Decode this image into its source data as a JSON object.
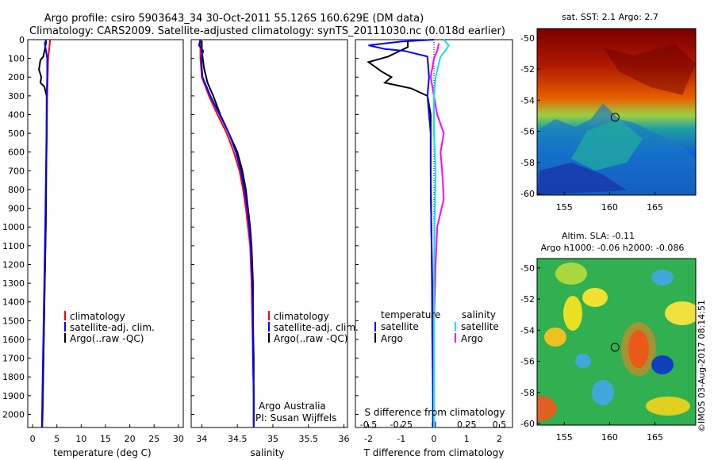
{
  "title": {
    "line1": "Argo profile: csiro 5903643_34 30-Oct-2011 55.126S 160.629E (DM data)",
    "line2": "Climatology: CARS2009. Satellite-adjusted climatology: synTS_20111030.nc (0.018d earlier)"
  },
  "colors": {
    "climatology": "#ff0000",
    "satellite": "#0000ff",
    "argo": "#000000",
    "sat_salinity": "#00e5ee",
    "argo_salinity": "#ff00ff"
  },
  "side_label": "©IMOS 03-Aug-2017 08:14:51",
  "chart_data": [
    {
      "type": "line",
      "id": "temperature",
      "xlabel": "temperature (deg C)",
      "ylabel": "",
      "xlim": [
        -1,
        31
      ],
      "ylim": [
        2070,
        0
      ],
      "xticks": [
        "0",
        "5",
        "10",
        "15",
        "20",
        "25",
        "30"
      ],
      "xtick_values": [
        0,
        5,
        10,
        15,
        20,
        25,
        30
      ],
      "yticks": [
        0,
        100,
        200,
        300,
        400,
        500,
        600,
        700,
        800,
        900,
        1000,
        1100,
        1200,
        1300,
        1400,
        1500,
        1600,
        1700,
        1800,
        1900,
        2000
      ],
      "legend": [
        "climatology",
        "satellite-adj. clim.",
        "Argo(..raw -QC)"
      ],
      "series": [
        {
          "name": "climatology",
          "points": [
            [
              3.6,
              0
            ],
            [
              3.4,
              50
            ],
            [
              3.2,
              100
            ],
            [
              3.1,
              200
            ],
            [
              3.0,
              300
            ],
            [
              2.9,
              500
            ],
            [
              2.8,
              700
            ],
            [
              2.7,
              1000
            ],
            [
              2.5,
              1300
            ],
            [
              2.3,
              1600
            ],
            [
              2.1,
              1900
            ],
            [
              2.0,
              2070
            ]
          ]
        },
        {
          "name": "satellite-adj. clim.",
          "points": [
            [
              2.8,
              0
            ],
            [
              2.5,
              20
            ],
            [
              2.7,
              50
            ],
            [
              3.0,
              100
            ],
            [
              3.0,
              200
            ],
            [
              2.9,
              300
            ],
            [
              2.85,
              500
            ],
            [
              2.75,
              700
            ],
            [
              2.6,
              1000
            ],
            [
              2.4,
              1300
            ],
            [
              2.2,
              1600
            ],
            [
              2.0,
              1900
            ],
            [
              1.9,
              2070
            ]
          ]
        },
        {
          "name": "Argo(..raw -QC)",
          "points": [
            [
              2.8,
              8
            ],
            [
              2.6,
              40
            ],
            [
              2.2,
              90
            ],
            [
              1.6,
              110
            ],
            [
              1.3,
              160
            ],
            [
              1.8,
              200
            ],
            [
              1.6,
              230
            ],
            [
              2.4,
              250
            ],
            [
              2.9,
              300
            ],
            [
              2.9,
              500
            ],
            [
              2.8,
              700
            ],
            [
              2.7,
              1000
            ],
            [
              2.5,
              1300
            ],
            [
              2.3,
              1600
            ],
            [
              2.1,
              1900
            ],
            [
              2.0,
              2040
            ]
          ]
        }
      ]
    },
    {
      "type": "line",
      "id": "salinity",
      "xlabel": "salinity",
      "ylabel": "",
      "xlim": [
        33.85,
        36.05
      ],
      "ylim": [
        2070,
        0
      ],
      "xticks": [
        "34",
        "34.5",
        "35",
        "35.5",
        "36"
      ],
      "xtick_values": [
        34,
        34.5,
        35,
        35.5,
        36
      ],
      "legend": [
        "climatology",
        "satellite-adj. clim.",
        "Argo(..raw -QC)"
      ],
      "annotation": [
        "Argo Australia",
        "PI: Susan Wijffels"
      ],
      "series": [
        {
          "name": "climatology",
          "points": [
            [
              33.98,
              0
            ],
            [
              33.98,
              100
            ],
            [
              34.0,
              200
            ],
            [
              34.1,
              300
            ],
            [
              34.22,
              400
            ],
            [
              34.35,
              500
            ],
            [
              34.45,
              600
            ],
            [
              34.53,
              700
            ],
            [
              34.58,
              800
            ],
            [
              34.62,
              900
            ],
            [
              34.65,
              1000
            ],
            [
              34.68,
              1100
            ],
            [
              34.69,
              1200
            ],
            [
              34.7,
              1300
            ],
            [
              34.71,
              1500
            ],
            [
              34.72,
              1700
            ],
            [
              34.73,
              1900
            ],
            [
              34.73,
              2070
            ]
          ]
        },
        {
          "name": "satellite-adj. clim.",
          "points": [
            [
              33.98,
              0
            ],
            [
              33.96,
              30
            ],
            [
              34.02,
              60
            ],
            [
              33.99,
              100
            ],
            [
              34.01,
              200
            ],
            [
              34.12,
              300
            ],
            [
              34.25,
              400
            ],
            [
              34.38,
              500
            ],
            [
              34.48,
              600
            ],
            [
              34.55,
              700
            ],
            [
              34.6,
              800
            ],
            [
              34.64,
              900
            ],
            [
              34.67,
              1000
            ],
            [
              34.69,
              1100
            ],
            [
              34.7,
              1200
            ],
            [
              34.71,
              1300
            ],
            [
              34.72,
              1500
            ],
            [
              34.72,
              1700
            ],
            [
              34.73,
              1900
            ],
            [
              34.73,
              2070
            ]
          ]
        },
        {
          "name": "Argo(..raw -QC)",
          "points": [
            [
              34.0,
              5
            ],
            [
              34.0,
              60
            ],
            [
              34.03,
              150
            ],
            [
              34.08,
              230
            ],
            [
              34.16,
              300
            ],
            [
              34.26,
              400
            ],
            [
              34.38,
              500
            ],
            [
              34.5,
              600
            ],
            [
              34.57,
              700
            ],
            [
              34.62,
              800
            ],
            [
              34.65,
              900
            ],
            [
              34.68,
              1000
            ],
            [
              34.7,
              1100
            ],
            [
              34.71,
              1200
            ],
            [
              34.72,
              1300
            ],
            [
              34.72,
              1500
            ],
            [
              34.73,
              1700
            ],
            [
              34.73,
              1900
            ],
            [
              34.73,
              2040
            ]
          ]
        }
      ]
    },
    {
      "type": "line",
      "id": "difference",
      "xlabel": "T difference from climatology",
      "xlabel_top": "S difference from climatology",
      "xlim": [
        -2.4,
        2.4
      ],
      "ylim": [
        2070,
        0
      ],
      "xticks": [
        "-2",
        "-1",
        "0",
        "1",
        "2"
      ],
      "xtick_values": [
        -2,
        -1,
        0,
        1,
        2
      ],
      "xticks_top": [
        "-0.5",
        "-0.25",
        "0",
        "0.25",
        "0.5"
      ],
      "xticks_top_values": [
        -0.5,
        -0.25,
        0,
        0.25,
        0.5
      ],
      "legend_left": {
        "header": "temperature",
        "items": [
          "satellite",
          "Argo"
        ]
      },
      "legend_right": {
        "header": "salinity",
        "items": [
          "satellite",
          "Argo"
        ]
      },
      "series": [
        {
          "name": "satellite",
          "points": [
            [
              0,
              0
            ],
            [
              -1.0,
              10
            ],
            [
              -2.0,
              30
            ],
            [
              -1.5,
              50
            ],
            [
              -0.9,
              60
            ],
            [
              -0.2,
              90
            ],
            [
              -0.15,
              200
            ],
            [
              -0.2,
              300
            ],
            [
              -0.15,
              400
            ],
            [
              -0.1,
              500
            ],
            [
              -0.1,
              600
            ],
            [
              -0.1,
              700
            ],
            [
              -0.1,
              800
            ],
            [
              -0.08,
              1000
            ],
            [
              -0.06,
              1300
            ],
            [
              -0.05,
              1600
            ],
            [
              -0.03,
              1900
            ],
            [
              -0.03,
              2070
            ]
          ]
        },
        {
          "name": "Argo",
          "points": [
            [
              -0.8,
              10
            ],
            [
              -0.8,
              40
            ],
            [
              -1.4,
              90
            ],
            [
              -2.0,
              120
            ],
            [
              -1.6,
              170
            ],
            [
              -1.3,
              200
            ],
            [
              -1.5,
              230
            ],
            [
              -0.7,
              260
            ],
            [
              -0.2,
              300
            ],
            [
              -0.1,
              400
            ],
            [
              -0.1,
              500
            ],
            [
              -0.1,
              700
            ],
            [
              -0.08,
              1000
            ],
            [
              -0.05,
              1300
            ],
            [
              -0.04,
              1600
            ],
            [
              -0.03,
              1900
            ],
            [
              -0.03,
              2040
            ]
          ]
        },
        {
          "name": "satellite",
          "points": [
            [
              0.3,
              0
            ],
            [
              0.45,
              30
            ],
            [
              0.35,
              60
            ],
            [
              0.2,
              90
            ],
            [
              0.05,
              200
            ],
            [
              0,
              300
            ],
            [
              0,
              500
            ],
            [
              0.05,
              700
            ],
            [
              0.02,
              1000
            ],
            [
              0,
              1300
            ],
            [
              0,
              1600
            ],
            [
              0,
              1900
            ],
            [
              0,
              2070
            ]
          ]
        },
        {
          "name": "Argo",
          "points": [
            [
              0.15,
              20
            ],
            [
              0.1,
              60
            ],
            [
              0.0,
              100
            ],
            [
              -0.1,
              200
            ],
            [
              0.1,
              400
            ],
            [
              0.3,
              500
            ],
            [
              0.2,
              600
            ],
            [
              0.25,
              700
            ],
            [
              0.3,
              850
            ],
            [
              0.1,
              1000
            ],
            [
              0.05,
              1200
            ],
            [
              0.0,
              1500
            ],
            [
              0.0,
              2040
            ]
          ]
        }
      ]
    },
    {
      "type": "heatmap",
      "id": "sst-map",
      "title": "sat. SST: 2.1  Argo: 2.7",
      "xticks": [
        "155",
        "160",
        "165"
      ],
      "xtick_values": [
        155,
        160,
        165
      ],
      "yticks": [
        "-50",
        "-52",
        "-54",
        "-56",
        "-58",
        "-60"
      ],
      "ytick_values": [
        -50,
        -52,
        -54,
        -56,
        -58,
        -60
      ],
      "xlim": [
        152,
        169.5
      ],
      "ylim": [
        -60.1,
        -49.4
      ],
      "profile": [
        160.6,
        -55.1
      ]
    },
    {
      "type": "heatmap",
      "id": "sla-map",
      "title": "Altim. SLA: -0.11",
      "subtitle": "Argo h1000: -0.06 h2000: -0.086",
      "xticks": [
        "155",
        "160",
        "165"
      ],
      "xtick_values": [
        155,
        160,
        165
      ],
      "yticks": [
        "-50",
        "-52",
        "-54",
        "-56",
        "-58",
        "-60"
      ],
      "ytick_values": [
        -50,
        -52,
        -54,
        -56,
        -58,
        -60
      ],
      "xlim": [
        152,
        169.5
      ],
      "ylim": [
        -60.1,
        -49.4
      ],
      "profile": [
        160.6,
        -55.1
      ]
    }
  ]
}
